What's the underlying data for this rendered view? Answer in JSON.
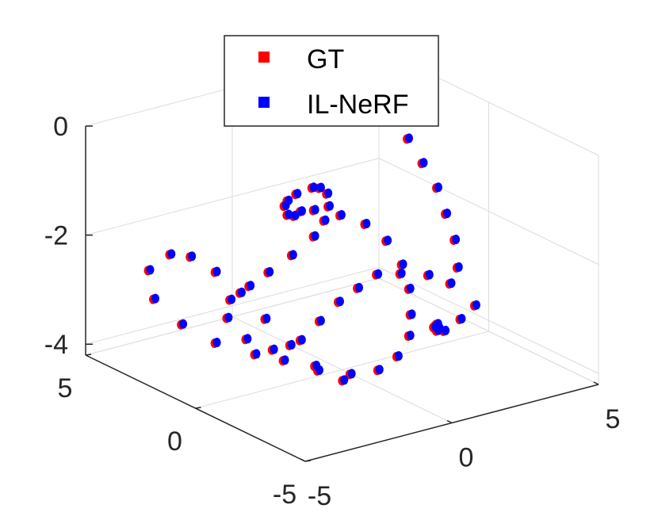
{
  "chart_data": {
    "type": "scatter",
    "projection": "3d",
    "grid": true,
    "legend_position": "top-center",
    "title": "",
    "xlabel": "",
    "ylabel": "",
    "zlabel": "",
    "xlim": [
      -5,
      5
    ],
    "ylim": [
      -5,
      5
    ],
    "zlim": [
      -4.2,
      0
    ],
    "x_ticks": [
      "-5",
      "0",
      "5"
    ],
    "y_ticks": [
      "-5",
      "0",
      "5"
    ],
    "z_ticks": [
      "0",
      "-2",
      "-4"
    ],
    "series": [
      {
        "name": "GT",
        "color": "#ff0000",
        "points": [
          [
            -3.0,
            -4.0,
            -3.2
          ],
          [
            -3.2,
            -3.0,
            -3.1
          ],
          [
            -3.3,
            -2.0,
            -2.9
          ],
          [
            -3.4,
            -1.0,
            -2.6
          ],
          [
            -3.5,
            0.0,
            -2.3
          ],
          [
            -3.6,
            1.0,
            -2.1
          ],
          [
            -3.7,
            2.0,
            -2.0
          ],
          [
            -3.8,
            2.8,
            -2.1
          ],
          [
            -4.0,
            3.5,
            -2.5
          ],
          [
            -4.2,
            3.0,
            -2.9
          ],
          [
            -4.0,
            2.0,
            -3.2
          ],
          [
            -3.6,
            1.0,
            -3.4
          ],
          [
            -3.0,
            0.0,
            -3.5
          ],
          [
            -2.4,
            -0.5,
            -3.6
          ],
          [
            -1.6,
            -1.0,
            -3.8
          ],
          [
            -0.8,
            -1.4,
            -3.9
          ],
          [
            0.0,
            -1.6,
            -3.9
          ],
          [
            0.8,
            -1.4,
            -3.8
          ],
          [
            1.5,
            -1.0,
            -3.6
          ],
          [
            2.0,
            -0.4,
            -3.4
          ],
          [
            2.4,
            0.2,
            -3.1
          ],
          [
            2.6,
            0.8,
            -2.8
          ],
          [
            2.6,
            1.5,
            -2.5
          ],
          [
            2.4,
            2.2,
            -2.3
          ],
          [
            2.0,
            2.8,
            -2.2
          ],
          [
            1.4,
            3.2,
            -2.1
          ],
          [
            0.8,
            3.0,
            -2.0
          ],
          [
            0.2,
            2.5,
            -1.9
          ],
          [
            -0.4,
            2.0,
            -1.7
          ],
          [
            -0.8,
            1.6,
            -1.4
          ],
          [
            -1.0,
            1.2,
            -1.2
          ],
          [
            -1.0,
            0.8,
            -1.0
          ],
          [
            -0.6,
            0.6,
            -0.9
          ],
          [
            -0.2,
            0.8,
            -1.0
          ],
          [
            0.2,
            1.0,
            -1.2
          ],
          [
            0.4,
            1.2,
            -1.5
          ],
          [
            0.4,
            1.4,
            -1.8
          ],
          [
            0.2,
            1.6,
            -2.1
          ],
          [
            -0.4,
            1.8,
            -2.4
          ],
          [
            -1.2,
            1.8,
            -2.6
          ],
          [
            -2.0,
            1.6,
            -2.7
          ],
          [
            -2.8,
            1.4,
            -2.8
          ],
          [
            -3.2,
            1.0,
            -3.0
          ],
          [
            -3.0,
            0.4,
            -3.3
          ],
          [
            -2.4,
            0.0,
            -3.5
          ],
          [
            -1.6,
            -0.2,
            -3.4
          ],
          [
            -0.8,
            0.0,
            -3.2
          ],
          [
            0.0,
            0.2,
            -3.0
          ],
          [
            0.8,
            0.4,
            -2.9
          ],
          [
            1.6,
            0.6,
            -2.8
          ],
          [
            2.4,
            0.6,
            -2.9
          ],
          [
            3.2,
            0.4,
            -3.0
          ],
          [
            3.8,
            0.2,
            -3.2
          ],
          [
            4.2,
            0.4,
            -3.0
          ],
          [
            4.4,
            0.8,
            -2.6
          ],
          [
            4.4,
            1.2,
            -2.2
          ],
          [
            4.4,
            1.6,
            -1.8
          ],
          [
            4.2,
            2.0,
            -1.4
          ],
          [
            4.0,
            2.4,
            -1.0
          ],
          [
            3.8,
            2.8,
            -0.6
          ],
          [
            3.6,
            3.2,
            -0.3
          ],
          [
            3.4,
            3.6,
            -0.1
          ],
          [
            3.2,
            4.0,
            0.0
          ],
          [
            1.0,
            -3.0,
            -3.0
          ],
          [
            1.4,
            -2.4,
            -3.1
          ],
          [
            1.8,
            -1.8,
            -3.3
          ],
          [
            2.2,
            -1.2,
            -3.5
          ],
          [
            2.6,
            -0.8,
            -3.7
          ],
          [
            3.0,
            -0.6,
            -3.8
          ],
          [
            3.4,
            -0.8,
            -3.6
          ],
          [
            3.6,
            -1.2,
            -3.3
          ]
        ]
      },
      {
        "name": "IL-NeRF",
        "color": "#0000ff",
        "points": [
          [
            -3.0,
            -4.0,
            -3.2
          ],
          [
            -3.2,
            -3.0,
            -3.1
          ],
          [
            -3.3,
            -2.0,
            -2.9
          ],
          [
            -3.4,
            -1.0,
            -2.6
          ],
          [
            -3.5,
            0.0,
            -2.3
          ],
          [
            -3.6,
            1.0,
            -2.1
          ],
          [
            -3.7,
            2.0,
            -2.0
          ],
          [
            -3.8,
            2.8,
            -2.1
          ],
          [
            -4.0,
            3.5,
            -2.5
          ],
          [
            -4.2,
            3.0,
            -2.9
          ],
          [
            -4.0,
            2.0,
            -3.2
          ],
          [
            -3.6,
            1.0,
            -3.4
          ],
          [
            -3.0,
            0.0,
            -3.5
          ],
          [
            -2.4,
            -0.5,
            -3.6
          ],
          [
            -1.6,
            -1.0,
            -3.8
          ],
          [
            -0.8,
            -1.4,
            -3.9
          ],
          [
            0.0,
            -1.6,
            -3.9
          ],
          [
            0.8,
            -1.4,
            -3.8
          ],
          [
            1.5,
            -1.0,
            -3.6
          ],
          [
            2.0,
            -0.4,
            -3.4
          ],
          [
            2.4,
            0.2,
            -3.1
          ],
          [
            2.6,
            0.8,
            -2.8
          ],
          [
            2.6,
            1.5,
            -2.5
          ],
          [
            2.4,
            2.2,
            -2.3
          ],
          [
            2.0,
            2.8,
            -2.2
          ],
          [
            1.4,
            3.2,
            -2.1
          ],
          [
            0.8,
            3.0,
            -2.0
          ],
          [
            0.2,
            2.5,
            -1.9
          ],
          [
            -0.4,
            2.0,
            -1.7
          ],
          [
            -0.8,
            1.6,
            -1.4
          ],
          [
            -1.0,
            1.2,
            -1.2
          ],
          [
            -1.0,
            0.8,
            -1.0
          ],
          [
            -0.6,
            0.6,
            -0.9
          ],
          [
            -0.2,
            0.8,
            -1.0
          ],
          [
            0.2,
            1.0,
            -1.2
          ],
          [
            0.4,
            1.2,
            -1.5
          ],
          [
            0.4,
            1.4,
            -1.8
          ],
          [
            0.2,
            1.6,
            -2.1
          ],
          [
            -0.4,
            1.8,
            -2.4
          ],
          [
            -1.2,
            1.8,
            -2.6
          ],
          [
            -2.0,
            1.6,
            -2.7
          ],
          [
            -2.8,
            1.4,
            -2.8
          ],
          [
            -3.2,
            1.0,
            -3.0
          ],
          [
            -3.0,
            0.4,
            -3.3
          ],
          [
            -2.4,
            0.0,
            -3.5
          ],
          [
            -1.6,
            -0.2,
            -3.4
          ],
          [
            -0.8,
            0.0,
            -3.2
          ],
          [
            0.0,
            0.2,
            -3.0
          ],
          [
            0.8,
            0.4,
            -2.9
          ],
          [
            1.6,
            0.6,
            -2.8
          ],
          [
            2.4,
            0.6,
            -2.9
          ],
          [
            3.2,
            0.4,
            -3.0
          ],
          [
            3.8,
            0.2,
            -3.2
          ],
          [
            4.2,
            0.4,
            -3.0
          ],
          [
            4.4,
            0.8,
            -2.6
          ],
          [
            4.4,
            1.2,
            -2.2
          ],
          [
            4.4,
            1.6,
            -1.8
          ],
          [
            4.2,
            2.0,
            -1.4
          ],
          [
            4.0,
            2.4,
            -1.0
          ],
          [
            3.8,
            2.8,
            -0.6
          ],
          [
            3.6,
            3.2,
            -0.3
          ],
          [
            3.4,
            3.6,
            -0.1
          ],
          [
            3.2,
            4.0,
            0.0
          ],
          [
            1.0,
            -3.0,
            -3.0
          ],
          [
            1.4,
            -2.4,
            -3.1
          ],
          [
            1.8,
            -1.8,
            -3.3
          ],
          [
            2.2,
            -1.2,
            -3.5
          ],
          [
            2.6,
            -0.8,
            -3.7
          ],
          [
            3.0,
            -0.6,
            -3.8
          ],
          [
            3.4,
            -0.8,
            -3.6
          ],
          [
            3.6,
            -1.2,
            -3.3
          ]
        ]
      }
    ]
  },
  "legend": {
    "items": [
      {
        "label": "GT",
        "color": "#ff0000"
      },
      {
        "label": "IL-NeRF",
        "color": "#0000ff"
      }
    ]
  }
}
